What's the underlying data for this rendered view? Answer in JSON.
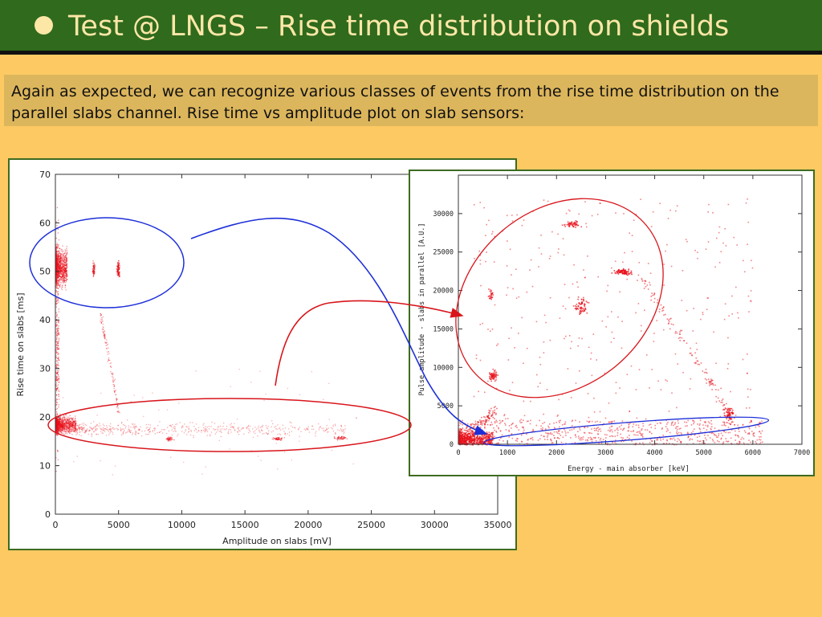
{
  "slide": {
    "title": "Test @ LNGS – Rise time distribution on shields",
    "note": "Again as expected, we can recognize various classes of events from the rise time distribution on the parallel slabs channel. Rise time vs amplitude plot on slab sensors:"
  },
  "colors": {
    "background": "#fdc963",
    "title_bar": "#2f6a1d",
    "title_text": "#fde7a6",
    "note_box": "#dcb65c",
    "points": "#e8101a",
    "blue_annotation": "#1d2fd8",
    "red_annotation": "#d8151b"
  },
  "chart_data": [
    {
      "type": "scatter",
      "title": "",
      "xlabel": "Amplitude on slabs [mV]",
      "ylabel": "Rise time on slabs [ms]",
      "xlim": [
        0,
        35000
      ],
      "ylim": [
        0,
        70
      ],
      "x_ticks": [
        "0",
        "5000",
        "10000",
        "15000",
        "20000",
        "25000",
        "30000",
        "35000"
      ],
      "y_ticks": [
        "0",
        "10",
        "20",
        "30",
        "40",
        "50",
        "60",
        "70"
      ],
      "grid": false,
      "clusters": [
        {
          "x_range": [
            0,
            600
          ],
          "y_range": [
            45,
            57
          ],
          "density": "high"
        },
        {
          "x_range": [
            0,
            1500
          ],
          "y_range": [
            16,
            21
          ],
          "density": "high"
        },
        {
          "x": 3000,
          "y": 50.5,
          "density": "medium"
        },
        {
          "x": 5000,
          "y": 50.5,
          "density": "medium"
        },
        {
          "x_range": [
            1500,
            23000
          ],
          "y_range": [
            15,
            19
          ],
          "density": "low"
        },
        {
          "x": 9000,
          "y": 15.5,
          "density": "medium"
        },
        {
          "x": 17500,
          "y": 15.5,
          "density": "medium"
        },
        {
          "x": 22500,
          "y": 15.8,
          "density": "medium"
        }
      ]
    },
    {
      "type": "scatter",
      "title": "",
      "xlabel": "Energy - main absorber [keV]",
      "ylabel": "Pulse amplitude - slabs in parallel [A.U.]",
      "xlim": [
        0,
        7000
      ],
      "ylim": [
        0,
        35000
      ],
      "x_ticks": [
        "0",
        "1000",
        "2000",
        "3000",
        "4000",
        "5000",
        "6000",
        "7000"
      ],
      "y_ticks": [
        "0",
        "5000",
        "10000",
        "15000",
        "20000",
        "25000",
        "30000"
      ],
      "grid": false,
      "clusters": [
        {
          "x_range": [
            0,
            700
          ],
          "y_range": [
            0,
            4000
          ],
          "density": "high"
        },
        {
          "x_range": [
            0,
            6200
          ],
          "y_range": [
            0,
            3500
          ],
          "density": "medium"
        },
        {
          "x": 700,
          "y": 9000,
          "density": "medium"
        },
        {
          "x": 650,
          "y": 19500,
          "density": "low"
        },
        {
          "x": 2500,
          "y": 18000,
          "density": "medium"
        },
        {
          "x": 3300,
          "y": 22500,
          "density": "high"
        },
        {
          "x": 2300,
          "y": 28700,
          "density": "medium"
        },
        {
          "x": 5500,
          "y": 4000,
          "density": "high"
        }
      ]
    }
  ]
}
